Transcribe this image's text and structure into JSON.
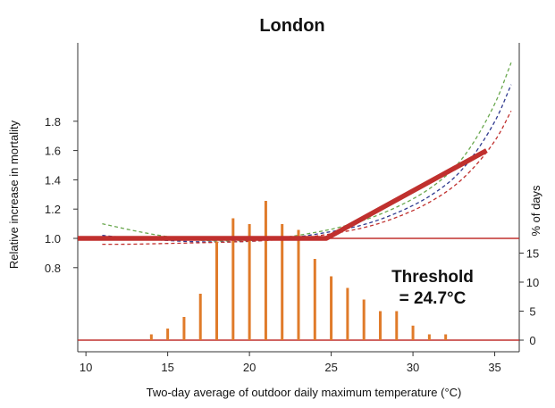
{
  "chart_data": {
    "type": "line",
    "title": "London",
    "xlabel": "Two-day average of outdoor daily maximum temperature (°C)",
    "ylabel": "Relative increase in mortality",
    "y2label": "% of days",
    "xlim": [
      9.5,
      36.5
    ],
    "x_ticks": [
      10,
      15,
      20,
      25,
      30,
      35
    ],
    "y_ticks": [
      0.8,
      1.0,
      1.2,
      1.4,
      1.6,
      1.8
    ],
    "y2_ticks": [
      0,
      5,
      10,
      15
    ],
    "reference_line": 1.0,
    "threshold_line": {
      "x": [
        9.5,
        24.7,
        34.5
      ],
      "y": [
        1.0,
        1.0,
        1.6
      ],
      "color": "#c0302e"
    },
    "curves": [
      {
        "color": "#6aa84f",
        "x": [
          11,
          13,
          15,
          17,
          19,
          21,
          23,
          25,
          27,
          29,
          31,
          33,
          35,
          36
        ],
        "y": [
          1.1,
          1.05,
          1.01,
          0.985,
          0.98,
          0.99,
          1.02,
          1.06,
          1.12,
          1.21,
          1.33,
          1.52,
          1.9,
          2.2
        ]
      },
      {
        "color": "#2f3a8f",
        "x": [
          11,
          13,
          15,
          17,
          19,
          21,
          23,
          25,
          27,
          29,
          31,
          33,
          35,
          36
        ],
        "y": [
          1.02,
          1.0,
          0.985,
          0.975,
          0.975,
          0.985,
          1.01,
          1.045,
          1.09,
          1.17,
          1.28,
          1.45,
          1.78,
          2.05
        ]
      },
      {
        "color": "#c0302e",
        "x": [
          11,
          13,
          15,
          17,
          19,
          21,
          23,
          25,
          27,
          29,
          31,
          33,
          35,
          36
        ],
        "y": [
          0.96,
          0.96,
          0.965,
          0.97,
          0.975,
          0.985,
          1.0,
          1.03,
          1.07,
          1.14,
          1.24,
          1.39,
          1.65,
          1.87
        ]
      }
    ],
    "histogram": {
      "color": "#e07b2a",
      "x": [
        14,
        15,
        16,
        17,
        18,
        19,
        20,
        21,
        22,
        23,
        24,
        25,
        26,
        27,
        28,
        29,
        30,
        31,
        32
      ],
      "values": [
        1,
        2,
        4,
        8,
        17,
        21,
        20,
        24,
        20,
        19,
        14,
        11,
        9,
        7,
        5,
        5,
        2.5,
        1,
        1
      ]
    },
    "annotation": {
      "line1": "Threshold",
      "line2": "= 24.7°C"
    }
  }
}
